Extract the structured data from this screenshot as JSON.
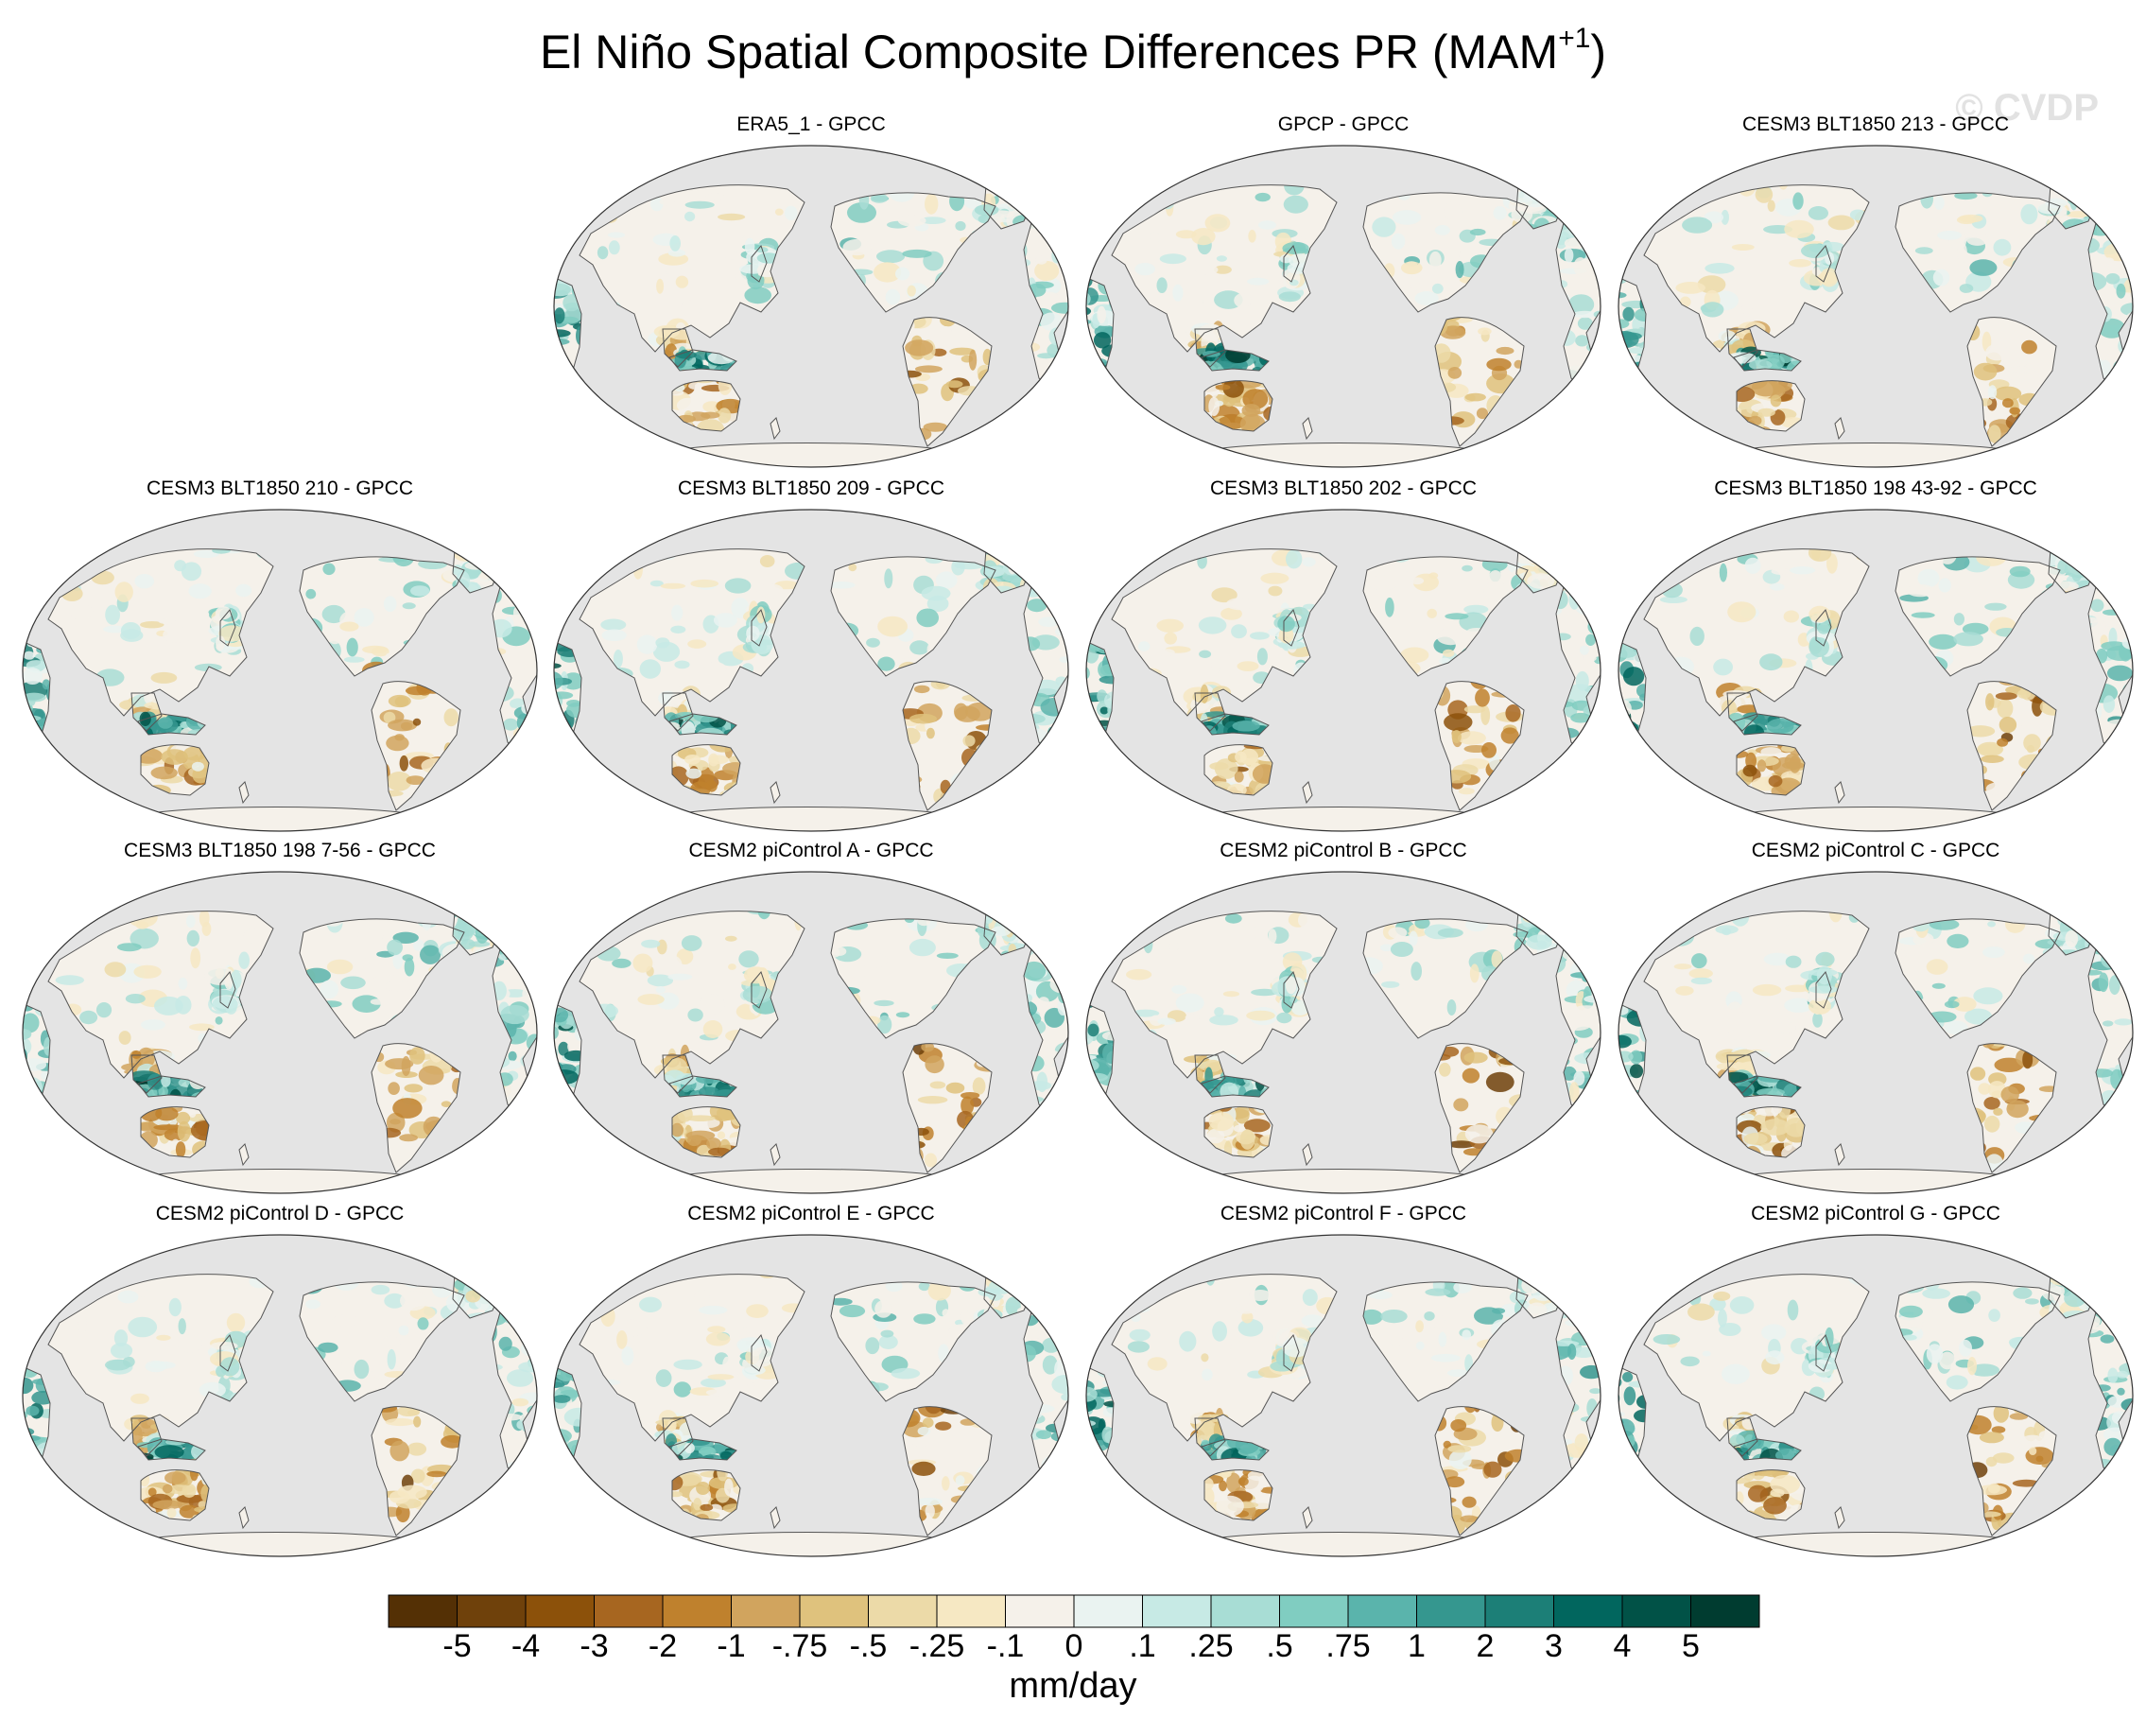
{
  "title": {
    "main": "El Niño Spatial Composite Differences PR (MAM",
    "sup": "+1",
    "close": ")"
  },
  "watermark": "© CVDP",
  "panels": [
    {
      "title": "ERA5_1 - GPCC",
      "pattern": 0
    },
    {
      "title": "GPCP - GPCC",
      "pattern": 1
    },
    {
      "title": "CESM3 BLT1850 213 - GPCC",
      "pattern": 2
    },
    {
      "title": "CESM3 BLT1850 210 - GPCC",
      "pattern": 3
    },
    {
      "title": "CESM3 BLT1850 209 - GPCC",
      "pattern": 4
    },
    {
      "title": "CESM3 BLT1850 202 - GPCC",
      "pattern": 5
    },
    {
      "title": "CESM3 BLT1850 198 43-92 - GPCC",
      "pattern": 6
    },
    {
      "title": "CESM3 BLT1850 198 7-56 - GPCC",
      "pattern": 7
    },
    {
      "title": "CESM2 piControl A - GPCC",
      "pattern": 8
    },
    {
      "title": "CESM2 piControl B - GPCC",
      "pattern": 9
    },
    {
      "title": "CESM2 piControl C - GPCC",
      "pattern": 10
    },
    {
      "title": "CESM2 piControl D - GPCC",
      "pattern": 11
    },
    {
      "title": "CESM2 piControl E - GPCC",
      "pattern": 12
    },
    {
      "title": "CESM2 piControl F - GPCC",
      "pattern": 13
    },
    {
      "title": "CESM2 piControl G - GPCC",
      "pattern": 14
    }
  ],
  "colorbar": {
    "colors": [
      "#543005",
      "#6f410b",
      "#8c510a",
      "#a76620",
      "#bf812d",
      "#d1a45e",
      "#dfc27d",
      "#ecdaa8",
      "#f6e8c3",
      "#f5f1ea",
      "#eaf3f1",
      "#c7eae5",
      "#a8ddd5",
      "#80cdc1",
      "#5ab4ac",
      "#35978f",
      "#1c7f77",
      "#01665e",
      "#015247",
      "#003c30"
    ],
    "labels": [
      "-5",
      "-4",
      "-3",
      "-2",
      "-1",
      "-.75",
      "-.5",
      "-.25",
      "-.1",
      "0",
      ".1",
      ".25",
      ".5",
      ".75",
      "1",
      "2",
      "3",
      "4",
      "5"
    ],
    "units": "mm/day"
  },
  "map_style": {
    "ocean": "#e4e4e4",
    "coast": "#555555",
    "land_base": "#f5f1ea"
  }
}
